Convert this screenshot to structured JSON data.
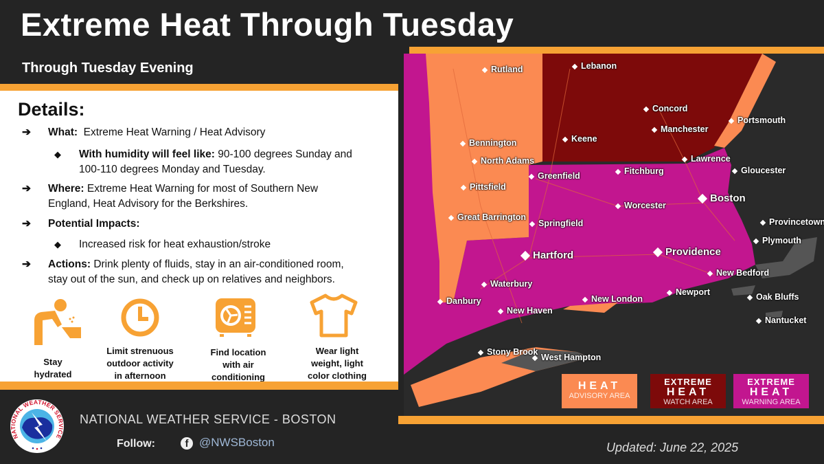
{
  "header": {
    "title": "Extreme Heat Through Tuesday",
    "subtitle": "Through Tuesday Evening"
  },
  "details": {
    "heading": "Details:",
    "what_label": "What:",
    "what": "Extreme Heat Warning / Heat Advisory",
    "humidity_label": "With humidity will feel like:",
    "humidity": "90-100 degrees Sunday and",
    "humidity2": "100-110 degrees Monday and Tuesday.",
    "where_label": "Where:",
    "where": "Extreme Heat Warning for most of Southern New",
    "where2": "England, Heat Advisory for the Berkshires.",
    "impacts_label": "Potential Impacts:",
    "impacts": "Increased risk for heat exhaustion/stroke",
    "actions_label": "Actions:",
    "actions": "Drink plenty of fluids, stay in an air-conditioned room,",
    "actions2": "stay out of the sun, and check up on relatives and neighbors."
  },
  "tips": [
    {
      "icon": "drinking-fountain-icon",
      "l1": "Stay",
      "l2": "hydrated",
      "l3": ""
    },
    {
      "icon": "clock-icon",
      "l1": "Limit strenuous",
      "l2": "outdoor activity",
      "l3": "in afternoon"
    },
    {
      "icon": "air-conditioner-icon",
      "l1": "Find location",
      "l2": "with air",
      "l3": "conditioning"
    },
    {
      "icon": "t-shirt-icon",
      "l1": "Wear light",
      "l2": "weight, light",
      "l3": "color clothing"
    }
  ],
  "colors": {
    "accent": "#f7a234",
    "advisory": "#fb8a52",
    "watch": "#7d0a0a",
    "warning": "#c2168f",
    "background": "#242424"
  },
  "map": {
    "cities": [
      "Rutland",
      "Lebanon",
      "Concord",
      "Manchester",
      "Portsmouth",
      "Keene",
      "Bennington",
      "North Adams",
      "Pittsfield",
      "Greenfield",
      "Fitchburg",
      "Lawrence",
      "Gloucester",
      "Boston",
      "Worcester",
      "Great Barrington",
      "Springfield",
      "Provincetown",
      "Plymouth",
      "Hartford",
      "Providence",
      "New Bedford",
      "Waterbury",
      "Newport",
      "Oak Bluffs",
      "Danbury",
      "New London",
      "Nantucket",
      "New Haven",
      "Stony Brook",
      "West Hampton"
    ],
    "legend": [
      {
        "top": "",
        "main": "HEAT",
        "sub": "ADVISORY AREA"
      },
      {
        "top": "EXTREME",
        "main": "HEAT",
        "sub": "WATCH AREA"
      },
      {
        "top": "EXTREME",
        "main": "HEAT",
        "sub": "WARNING AREA"
      }
    ]
  },
  "footer": {
    "org": "NATIONAL WEATHER SERVICE - BOSTON",
    "follow": "Follow:",
    "fb_icon": "f",
    "handle": "@NWSBoston",
    "updated": "Updated: June 22, 2025",
    "logo_text": "NATIONAL WEATHER SERVICE"
  }
}
